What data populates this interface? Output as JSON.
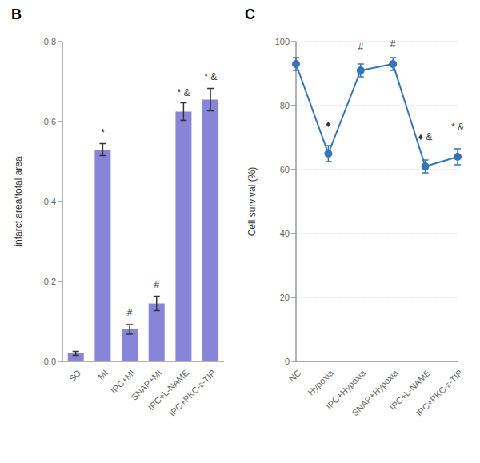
{
  "chart_data": [
    {
      "type": "bar",
      "title": "B",
      "categories": [
        "SO",
        "MI",
        "IPC+MI",
        "SNAP+MI",
        "IPC+L-NAME",
        "IPC+PKC-ε-TIP"
      ],
      "values": [
        0.02,
        0.53,
        0.08,
        0.145,
        0.625,
        0.655
      ],
      "errors": [
        0.005,
        0.015,
        0.012,
        0.018,
        0.022,
        0.028
      ],
      "ylabel": "infarct area/total area",
      "ylim": [
        0.0,
        0.8
      ],
      "yticks": [
        {
          "value": 0.0,
          "label": "0.0"
        },
        0.2,
        0.4,
        0.6,
        0.8
      ],
      "color": "#8884d8",
      "grid": false,
      "annotations": [
        {
          "text": "*",
          "x": "MI",
          "y": 0.555
        },
        {
          "text": "#",
          "x": "IPC+MI",
          "y": 0.105
        },
        {
          "text": "#",
          "x": "SNAP+MI",
          "y": 0.175
        },
        {
          "text": "* &",
          "x": "IPC+L-NAME",
          "y": 0.655
        },
        {
          "text": "* &",
          "x": "IPC+PKC-ε-TIP",
          "y": 0.695
        }
      ]
    },
    {
      "type": "line",
      "title": "C",
      "categories": [
        "NC",
        "Hypoxia",
        "IPC+Hypoxia",
        "SNAP+Hypoxia",
        "IPC+L-NAME",
        "IPC+PKC-ε-TIP"
      ],
      "values": [
        93,
        65,
        91,
        93,
        61,
        64
      ],
      "errors": [
        2,
        2.5,
        2,
        2,
        2,
        2.5
      ],
      "ylabel": "Cell survival (%)",
      "ylim": [
        0,
        100
      ],
      "yticks": [
        0,
        20,
        40,
        60,
        80,
        100
      ],
      "color": "#3474b7",
      "marker": "circle",
      "grid": true,
      "annotations": [
        {
          "text": "♦",
          "x": "Hypoxia",
          "y": 72
        },
        {
          "text": "#",
          "x": "IPC+Hypoxia",
          "y": 96
        },
        {
          "text": "#",
          "x": "SNAP+Hypoxia",
          "y": 97
        },
        {
          "text": "♦ &",
          "x": "IPC+L-NAME",
          "y": 68
        },
        {
          "text": "* &",
          "x": "IPC+PKC-ε-TIP",
          "y": 71
        }
      ]
    }
  ]
}
